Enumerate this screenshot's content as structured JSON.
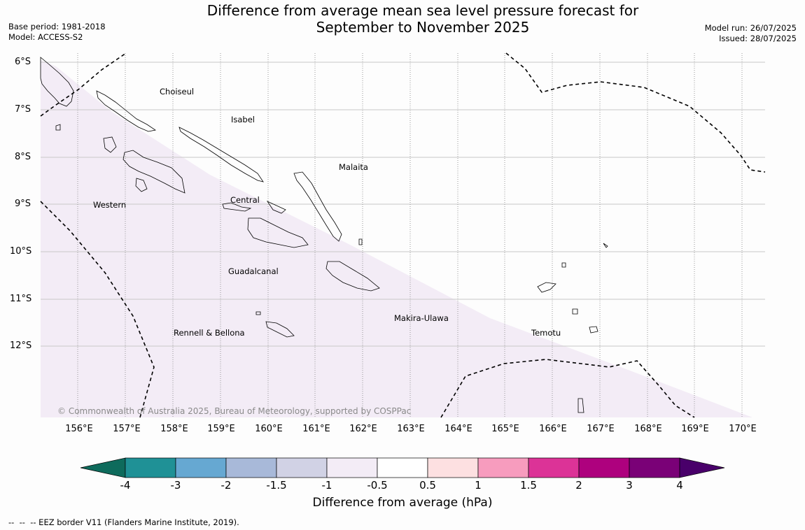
{
  "title_line1": "Difference from average mean sea level pressure forecast for",
  "title_line2": "September to November 2025",
  "base_period": "Base period: 1981-2018",
  "model": "Model: ACCESS-S2",
  "model_run": "Model run: 26/07/2025",
  "issued": "Issued: 28/07/2025",
  "lat_labels": [
    "6°S",
    "7°S",
    "8°S",
    "9°S",
    "10°S",
    "11°S",
    "12°S"
  ],
  "lon_labels": [
    "156°E",
    "157°E",
    "158°E",
    "159°E",
    "160°E",
    "161°E",
    "162°E",
    "163°E",
    "164°E",
    "165°E",
    "166°E",
    "167°E",
    "168°E",
    "169°E",
    "170°E"
  ],
  "places": {
    "choiseul": "Choiseul",
    "isabel": "Isabel",
    "malaita": "Malaita",
    "western": "Western",
    "central": "Central",
    "guadalcanal": "Guadalcanal",
    "makira": "Makira-Ulawa",
    "rennell": "Rennell & Bellona",
    "temotu": "Temotu"
  },
  "copyright": "© Commonwealth of Australia 2025, Bureau of Meteorology, supported by COSPPac",
  "colorbar": {
    "ticks": [
      "-4",
      "-3",
      "-2",
      "-1.5",
      "-1",
      "-0.5",
      "0.5",
      "1",
      "1.5",
      "2",
      "3",
      "4"
    ],
    "colors": {
      "below_min": "#0e6b5c",
      "b1": "#1f9196",
      "b2": "#66a8d2",
      "b3": "#a8b9d9",
      "b4": "#d1d2e5",
      "b5": "#f3ecf6",
      "b6": "#ffffff",
      "b7": "#fde0e1",
      "b8": "#f79cbe",
      "b9": "#dc3397",
      "b10": "#ae017e",
      "b11": "#7a0177",
      "above_max": "#49006a"
    },
    "label": "Difference from average (hPa)"
  },
  "footer": "--  --  -- EEZ border V11 (Flanders Marine Institute, 2019)."
}
